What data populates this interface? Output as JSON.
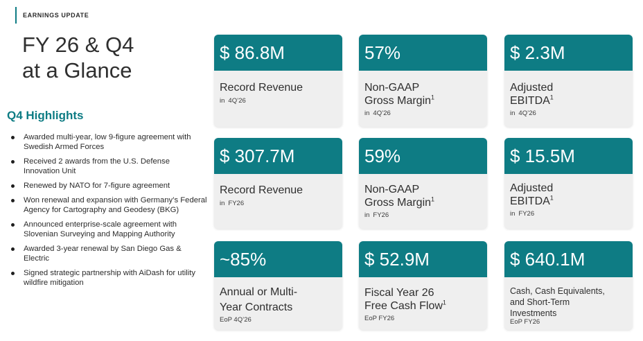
{
  "header": {
    "tag": "EARNINGS UPDATE"
  },
  "title": {
    "line1": "FY 26 & Q4",
    "line2": "at a Glance"
  },
  "highlights": {
    "heading": "Q4 Highlights",
    "items": [
      "Awarded multi-year, low 9-figure agreement with Swedish Armed Forces",
      "Received 2 awards from the U.S. Defense Innovation Unit",
      "Renewed by NATO for 7-figure agreement",
      "Won renewal and expansion with Germany’s Federal Agency for Cartography and Geodesy (BKG)",
      "Announced enterprise-scale agreement with Slovenian Surveying and Mapping Authority",
      "Awarded 3-year renewal by San Diego Gas & Electric",
      "Signed strategic partnership with AiDash for utility wildfire mitigation"
    ]
  },
  "metrics": [
    {
      "value": "$ 86.8M",
      "label_lines": [
        "Record Revenue"
      ],
      "footnote": "",
      "period_prefix": "in",
      "period": "4Q’26"
    },
    {
      "value": "57%",
      "label_lines": [
        "Non-GAAP",
        "Gross Margin"
      ],
      "footnote": "1",
      "period_prefix": "in",
      "period": "4Q’26"
    },
    {
      "value": "$ 2.3M",
      "label_lines": [
        "Adjusted",
        "EBITDA"
      ],
      "footnote": "1",
      "period_prefix": "in",
      "period": "4Q’26"
    },
    {
      "value": "$ 307.7M",
      "label_lines": [
        "Record Revenue"
      ],
      "footnote": "",
      "period_prefix": "in",
      "period": "FY26"
    },
    {
      "value": "59%",
      "label_lines": [
        "Non-GAAP",
        "Gross Margin"
      ],
      "footnote": "1",
      "period_prefix": "in",
      "period": "FY26"
    },
    {
      "value": "$ 15.5M",
      "label_lines": [
        "Adjusted",
        "EBITDA"
      ],
      "footnote": "1",
      "period_prefix": "in",
      "period": "FY26"
    },
    {
      "value": "~85%",
      "label_lines": [
        "Annual or Multi-",
        "Year Contracts"
      ],
      "footnote": "",
      "period_prefix": "",
      "period": "EoP 4Q’26"
    },
    {
      "value": "$ 52.9M",
      "label_lines": [
        "Fiscal Year 26",
        "Free Cash Flow"
      ],
      "footnote": "1",
      "period_prefix": "",
      "period": "EoP FY26"
    },
    {
      "value": "$ 640.1M",
      "label_lines": [
        "Cash, Cash Equivalents,",
        "and Short-Term",
        "Investments"
      ],
      "footnote": "",
      "period_prefix": "",
      "period": "EoP FY26"
    }
  ],
  "colors": {
    "accent": "#0e7c84",
    "card_bg": "#efefef"
  }
}
